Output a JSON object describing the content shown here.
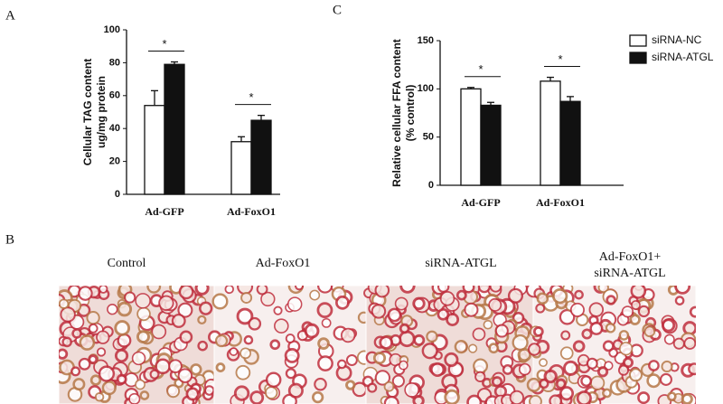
{
  "panels": {
    "a": "A",
    "b": "B",
    "c": "C",
    "images": [
      "Control",
      "Ad-FoxO1",
      "siRNA-ATGL",
      [
        "Ad-FoxO1+",
        "siRNA-ATGL"
      ]
    ]
  },
  "chart_data": [
    {
      "type": "bar",
      "ylabel": [
        "Cellular TAG content",
        "ug/mg protein"
      ],
      "categories": [
        "Ad-GFP",
        "Ad-FoxO1"
      ],
      "series": [
        {
          "color": "#ffffff",
          "values": [
            54,
            32
          ],
          "errors": [
            9,
            3
          ]
        },
        {
          "color": "#111111",
          "values": [
            79,
            45
          ],
          "errors": [
            1.5,
            3
          ]
        }
      ],
      "annotations": [
        "*",
        "*"
      ],
      "ylim": [
        0,
        100
      ],
      "yticks": [
        0,
        20,
        40,
        60,
        80,
        100
      ]
    },
    {
      "type": "bar",
      "ylabel": [
        "Relative cellular FFA content",
        "(% control)"
      ],
      "categories": [
        "Ad-GFP",
        "Ad-FoxO1"
      ],
      "series": [
        {
          "name": "siRNA-NC",
          "color": "#ffffff",
          "values": [
            100,
            108
          ],
          "errors": [
            1.5,
            4
          ]
        },
        {
          "name": "siRNA-ATGL",
          "color": "#111111",
          "values": [
            83,
            87
          ],
          "errors": [
            3,
            5
          ]
        }
      ],
      "annotations": [
        "*",
        "*"
      ],
      "ylim": [
        0,
        150
      ],
      "yticks": [
        0,
        50,
        100,
        150
      ]
    }
  ]
}
